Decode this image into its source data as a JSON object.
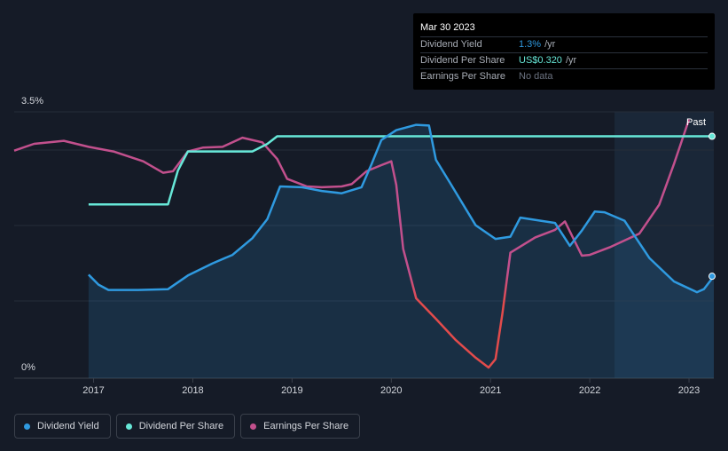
{
  "tooltip": {
    "date": "Mar 30 2023",
    "rows": [
      {
        "label": "Dividend Yield",
        "value": "1.3%",
        "unit": "/yr"
      },
      {
        "label": "Dividend Per Share",
        "value": "US$0.320",
        "unit": "/yr"
      },
      {
        "label": "Earnings Per Share",
        "value": "No data",
        "unit": ""
      }
    ]
  },
  "past_label": "Past",
  "legend": [
    {
      "label": "Dividend Yield",
      "color": "#2f9ae0"
    },
    {
      "label": "Dividend Per Share",
      "color": "#67e8d8"
    },
    {
      "label": "Earnings Per Share",
      "color": "#c2508d"
    }
  ],
  "colors": {
    "background": "#151b27",
    "past_band": "#1a2738",
    "yield": "#2f9ae0",
    "dps": "#67e8d8",
    "eps_positive": "#c2508d",
    "eps_negative": "#e24b4b"
  },
  "chart_data": {
    "type": "line",
    "y_axis": {
      "min_label": "0%",
      "max_label": "3.5%",
      "ylim": [
        0,
        3.5
      ]
    },
    "x_axis": {
      "ticks": [
        "2017",
        "2018",
        "2019",
        "2020",
        "2021",
        "2022",
        "2023"
      ],
      "range": [
        2016.2,
        2023.25
      ]
    },
    "past_region_start": 2022.25,
    "grid": true,
    "series": [
      {
        "name": "Dividend Yield",
        "unit": "%",
        "area": true,
        "points": [
          [
            2016.95,
            1.36
          ],
          [
            2017.05,
            1.23
          ],
          [
            2017.15,
            1.16
          ],
          [
            2017.45,
            1.16
          ],
          [
            2017.75,
            1.17
          ],
          [
            2017.95,
            1.35
          ],
          [
            2018.2,
            1.51
          ],
          [
            2018.4,
            1.62
          ],
          [
            2018.6,
            1.84
          ],
          [
            2018.75,
            2.09
          ],
          [
            2018.88,
            2.52
          ],
          [
            2019.1,
            2.51
          ],
          [
            2019.3,
            2.46
          ],
          [
            2019.5,
            2.43
          ],
          [
            2019.7,
            2.51
          ],
          [
            2019.8,
            2.81
          ],
          [
            2019.9,
            3.13
          ],
          [
            2020.05,
            3.26
          ],
          [
            2020.25,
            3.33
          ],
          [
            2020.38,
            3.32
          ],
          [
            2020.45,
            2.87
          ],
          [
            2020.6,
            2.55
          ],
          [
            2020.85,
            2.01
          ],
          [
            2021.05,
            1.83
          ],
          [
            2021.2,
            1.86
          ],
          [
            2021.3,
            2.11
          ],
          [
            2021.65,
            2.04
          ],
          [
            2021.8,
            1.74
          ],
          [
            2021.92,
            1.94
          ],
          [
            2022.05,
            2.19
          ],
          [
            2022.15,
            2.18
          ],
          [
            2022.35,
            2.07
          ],
          [
            2022.6,
            1.58
          ],
          [
            2022.85,
            1.27
          ],
          [
            2023.08,
            1.13
          ],
          [
            2023.15,
            1.17
          ],
          [
            2023.25,
            1.34
          ]
        ]
      },
      {
        "name": "Dividend Per Share",
        "unit": "US$",
        "points": [
          [
            2016.95,
            0.23
          ],
          [
            2017.75,
            0.23
          ],
          [
            2017.85,
            0.275
          ],
          [
            2017.95,
            0.3
          ],
          [
            2018.6,
            0.3
          ],
          [
            2018.75,
            0.31
          ],
          [
            2018.85,
            0.32
          ],
          [
            2023.25,
            0.32
          ]
        ]
      },
      {
        "name": "Earnings Per Share",
        "unit": "relative",
        "points": [
          [
            2016.2,
            2.99
          ],
          [
            2016.4,
            3.08
          ],
          [
            2016.7,
            3.12
          ],
          [
            2016.95,
            3.04
          ],
          [
            2017.2,
            2.98
          ],
          [
            2017.5,
            2.85
          ],
          [
            2017.7,
            2.7
          ],
          [
            2017.8,
            2.72
          ],
          [
            2017.95,
            2.98
          ],
          [
            2018.1,
            3.03
          ],
          [
            2018.3,
            3.04
          ],
          [
            2018.5,
            3.16
          ],
          [
            2018.7,
            3.1
          ],
          [
            2018.85,
            2.88
          ],
          [
            2018.95,
            2.62
          ],
          [
            2019.15,
            2.52
          ],
          [
            2019.3,
            2.51
          ],
          [
            2019.5,
            2.52
          ],
          [
            2019.6,
            2.55
          ],
          [
            2019.75,
            2.72
          ],
          [
            2019.9,
            2.8
          ],
          [
            2020.0,
            2.85
          ],
          [
            2020.05,
            2.54
          ],
          [
            2020.12,
            1.7
          ],
          [
            2020.25,
            1.05
          ],
          [
            2020.45,
            0.78
          ],
          [
            2020.65,
            0.5
          ],
          [
            2020.85,
            0.27
          ],
          [
            2020.98,
            0.14
          ],
          [
            2021.05,
            0.25
          ],
          [
            2021.12,
            0.85
          ],
          [
            2021.2,
            1.65
          ],
          [
            2021.45,
            1.85
          ],
          [
            2021.65,
            1.95
          ],
          [
            2021.75,
            2.06
          ],
          [
            2021.92,
            1.61
          ],
          [
            2022.0,
            1.62
          ],
          [
            2022.2,
            1.72
          ],
          [
            2022.5,
            1.9
          ],
          [
            2022.7,
            2.28
          ],
          [
            2022.85,
            2.82
          ],
          [
            2023.0,
            3.4
          ]
        ]
      }
    ]
  }
}
